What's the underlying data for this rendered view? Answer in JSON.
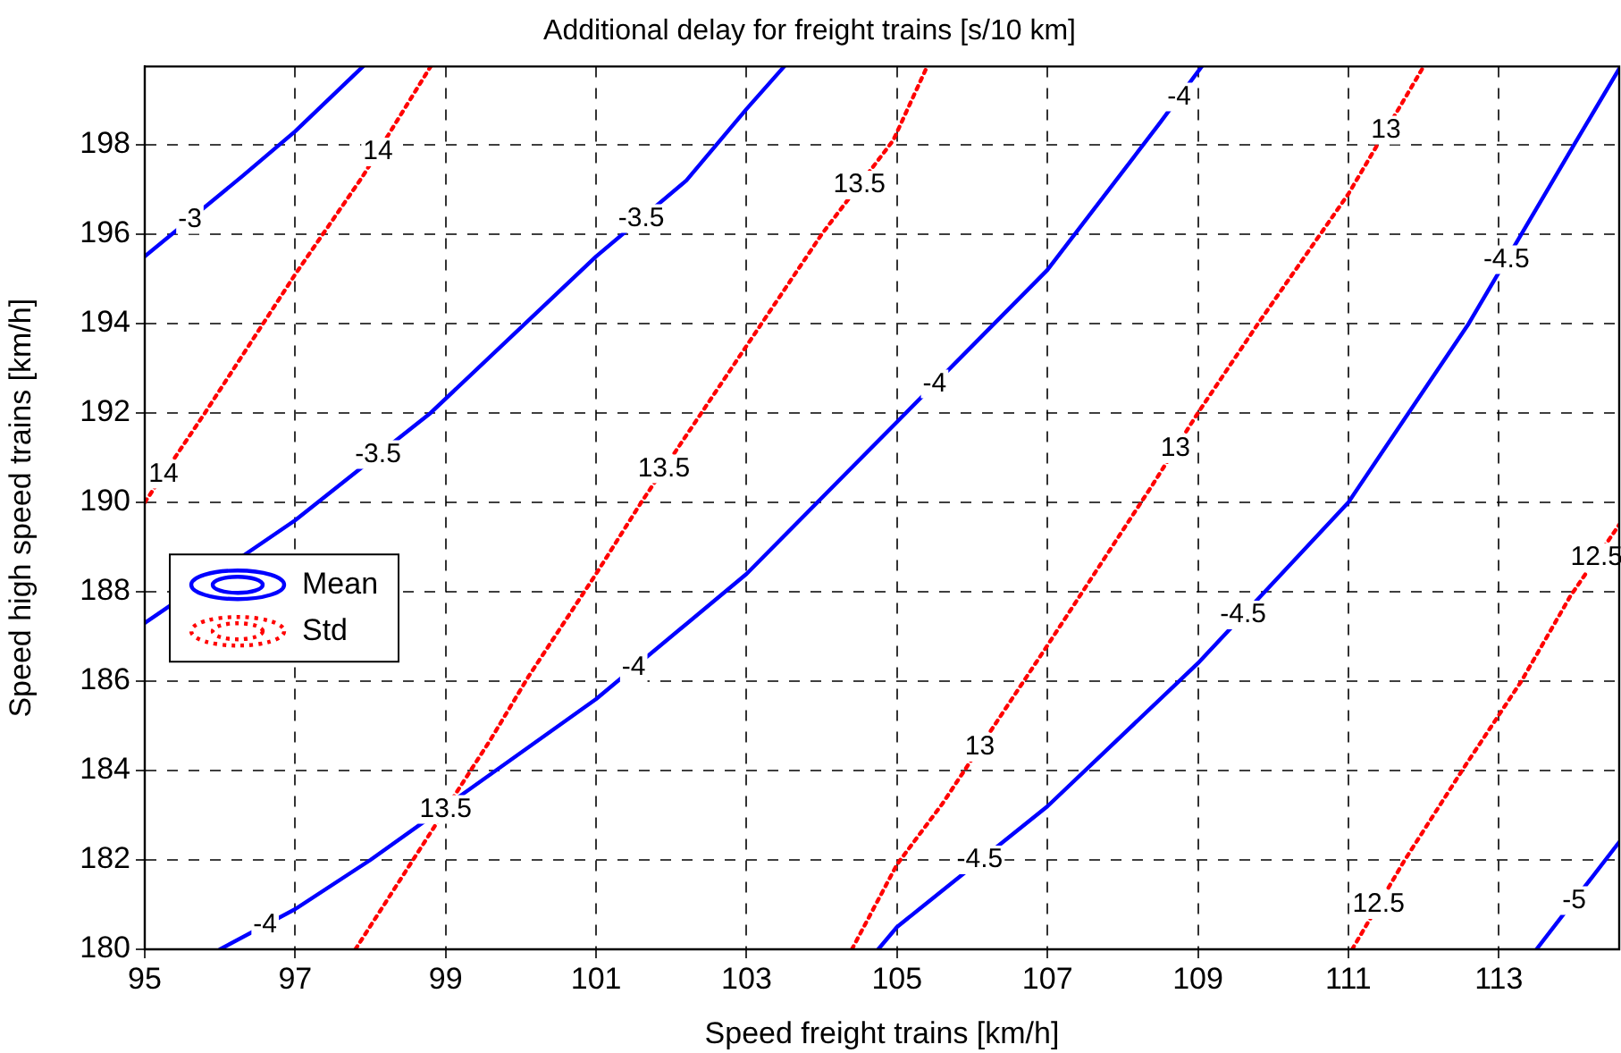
{
  "chart_data": {
    "type": "line",
    "title": "Additional delay for freight trains [s/10 km]",
    "xlabel": "Speed freight trains [km/h]",
    "ylabel": "Speed high speed trains [km/h]",
    "xlim": [
      95,
      114.6
    ],
    "ylim": [
      180,
      199.75
    ],
    "xticks": [
      95,
      97,
      99,
      101,
      103,
      105,
      107,
      109,
      111,
      113
    ],
    "yticks": [
      180,
      182,
      184,
      186,
      188,
      190,
      192,
      194,
      196,
      198
    ],
    "grid": true,
    "legend": "left",
    "marker": "none",
    "series": [
      {
        "name": "Mean",
        "color": "#0000ff",
        "line_style": "solid",
        "x": [
          95,
          96.3,
          97,
          97.9
        ],
        "values": [
          195.5,
          197.3,
          198.3,
          199.75
        ]
      },
      {
        "color": "#0000ff",
        "line_style": "solid",
        "x": [
          95,
          97,
          98.8,
          101,
          102.2,
          103,
          103.5
        ],
        "values": [
          187.3,
          189.6,
          192,
          195.5,
          197.2,
          198.8,
          199.75
        ]
      },
      {
        "color": "#0000ff",
        "line_style": "solid",
        "x": [
          96,
          97,
          98,
          101,
          103,
          105,
          107,
          108.5,
          109.05
        ],
        "values": [
          180,
          180.9,
          182,
          185.6,
          188.4,
          191.8,
          195.2,
          198.5,
          199.75
        ]
      },
      {
        "color": "#0000ff",
        "line_style": "solid",
        "x": [
          104.75,
          105,
          107,
          109,
          111,
          112.6,
          114,
          114.6
        ],
        "values": [
          180,
          180.5,
          183.2,
          186.4,
          190,
          194,
          198,
          199.7
        ]
      },
      {
        "color": "#0000ff",
        "line_style": "solid",
        "x": [
          113.5,
          114.6
        ],
        "values": [
          180,
          182.4
        ]
      },
      {
        "name": "Std",
        "color": "#ff0000",
        "line_style": "dotted",
        "x": [
          95,
          95.8,
          97,
          97.9,
          98.8
        ],
        "values": [
          190,
          192,
          195.1,
          197.3,
          199.75
        ]
      },
      {
        "color": "#ff0000",
        "line_style": "dotted",
        "x": [
          97.8,
          99.6,
          100.1,
          101,
          101.6,
          103,
          104,
          104.95,
          105.4
        ],
        "values": [
          180,
          184.7,
          186.1,
          188.4,
          190,
          193.5,
          196,
          198.1,
          199.75
        ]
      },
      {
        "color": "#ff0000",
        "line_style": "dotted",
        "x": [
          104.4,
          105,
          105.6,
          107,
          108.4,
          109,
          109.8,
          111,
          112
        ],
        "values": [
          180,
          181.9,
          183.25,
          186.8,
          190.4,
          192,
          194,
          196.9,
          199.75
        ]
      },
      {
        "color": "#ff0000",
        "line_style": "dotted",
        "x": [
          111.05,
          111.75,
          112.55,
          113.3,
          113.95,
          114.6
        ],
        "values": [
          180,
          182,
          184.1,
          186,
          187.9,
          189.5
        ]
      }
    ],
    "annotations": [
      {
        "text": "-3",
        "x": 95.6,
        "y": 196.33
      },
      {
        "text": "-3.5",
        "x": 98.1,
        "y": 191.07
      },
      {
        "text": "-3.5",
        "x": 101.6,
        "y": 196.35
      },
      {
        "text": "-4",
        "x": 96.6,
        "y": 180.54
      },
      {
        "text": "-4",
        "x": 101.5,
        "y": 186.3
      },
      {
        "text": "-4",
        "x": 105.5,
        "y": 192.65
      },
      {
        "text": "-4",
        "x": 108.75,
        "y": 199.07
      },
      {
        "text": "-4.5",
        "x": 106.1,
        "y": 182
      },
      {
        "text": "-4.5",
        "x": 109.6,
        "y": 187.48
      },
      {
        "text": "-4.5",
        "x": 113.1,
        "y": 195.43
      },
      {
        "text": "-5",
        "x": 114,
        "y": 181.09
      },
      {
        "text": "14",
        "x": 95.25,
        "y": 190.63
      },
      {
        "text": "14",
        "x": 98.1,
        "y": 197.84
      },
      {
        "text": "13.5",
        "x": 99,
        "y": 183.13
      },
      {
        "text": "13.5",
        "x": 101.9,
        "y": 190.75
      },
      {
        "text": "13.5",
        "x": 104.5,
        "y": 197.1
      },
      {
        "text": "13",
        "x": 106.1,
        "y": 184.52
      },
      {
        "text": "13",
        "x": 108.7,
        "y": 191.2
      },
      {
        "text": "13",
        "x": 111.5,
        "y": 198.33
      },
      {
        "text": "12.5",
        "x": 111.4,
        "y": 181
      },
      {
        "text": "12.5",
        "x": 114.3,
        "y": 188.76
      }
    ]
  }
}
